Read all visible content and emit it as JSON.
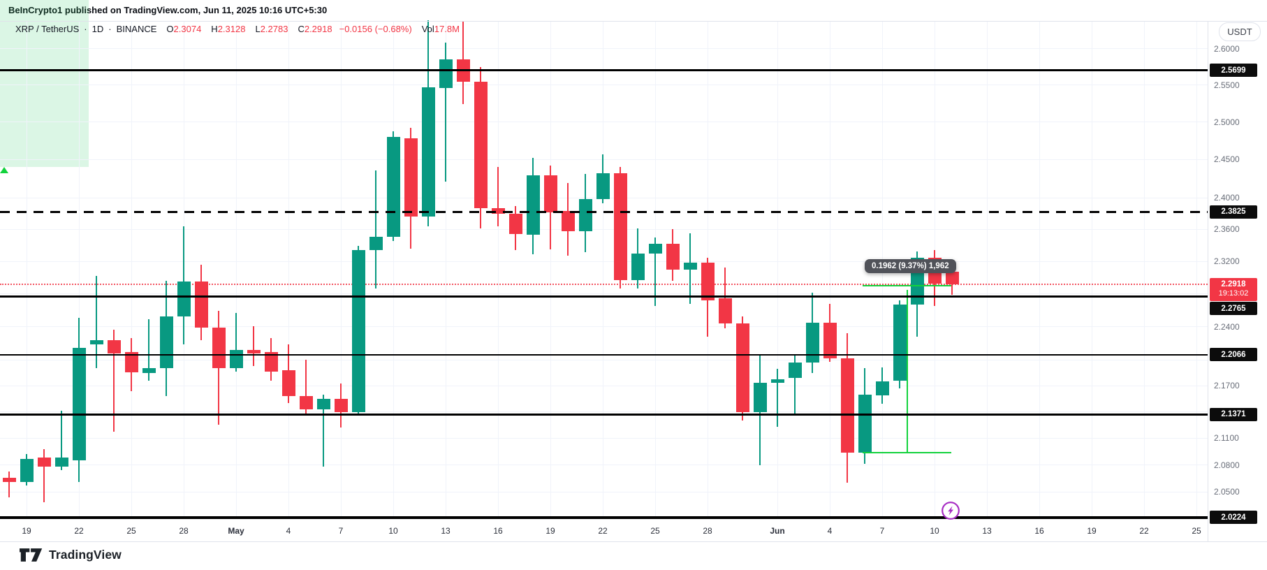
{
  "header": {
    "text": "BeInCrypto1 published on TradingView.com, Jun 11, 2025 10:16 UTC+5:30"
  },
  "legend": {
    "symbol": "XRP / TetherUS",
    "separator": "·",
    "interval": "1D",
    "exchange": "BINANCE",
    "o_label": "O",
    "o_value": "2.3074",
    "h_label": "H",
    "h_value": "2.3128",
    "l_label": "L",
    "l_value": "2.2783",
    "c_label": "C",
    "c_value": "2.2918",
    "change": "−0.0156 (−0.68%)",
    "vol_label": "Vol",
    "vol_value": "17.8M"
  },
  "currency_button": {
    "label": "USDT"
  },
  "footer": {
    "logo_text": "TradingView"
  },
  "measure_tooltip": {
    "text": "0.1962 (9.37%) 1,962"
  },
  "current_price": {
    "price_text": "2.2918",
    "countdown": "19:13:02",
    "price": 2.2918
  },
  "colors": {
    "up": "#089981",
    "down": "#f23645",
    "level": "#000000",
    "grid": "#f0f3fa",
    "current_line": "#f23645",
    "measure_fill": "rgba(34,197,94,0.16)",
    "measure_line": "#12d23c",
    "badge_bg": "#0c0c0c",
    "purple_marker": "#a62bc3"
  },
  "chart_data": {
    "type": "candlestick",
    "title": "XRP / TetherUS · 1D · BINANCE",
    "scale": "logarithmic",
    "ylim": [
      2.0,
      2.66
    ],
    "grid_on": true,
    "y_axis": {
      "labels": [
        {
          "text": "2.6000",
          "price": 2.6
        },
        {
          "text": "2.5500",
          "price": 2.55
        },
        {
          "text": "2.5000",
          "price": 2.5
        },
        {
          "text": "2.4500",
          "price": 2.45
        },
        {
          "text": "2.4000",
          "price": 2.4
        },
        {
          "text": "2.3600",
          "price": 2.36
        },
        {
          "text": "2.3200",
          "price": 2.32
        },
        {
          "text": "2.2400",
          "price": 2.24
        },
        {
          "text": "2.1700",
          "price": 2.17
        },
        {
          "text": "2.1100",
          "price": 2.11
        },
        {
          "text": "2.0800",
          "price": 2.08
        },
        {
          "text": "2.0500",
          "price": 2.05
        }
      ],
      "level_badges": [
        {
          "text": "2.5699",
          "price": 2.5699,
          "offset": 0
        },
        {
          "text": "2.3825",
          "price": 2.3825,
          "offset": 0
        },
        {
          "text": "2.2765",
          "price": 2.2765,
          "offset": 17
        },
        {
          "text": "2.2066",
          "price": 2.2066,
          "offset": 0
        },
        {
          "text": "2.1371",
          "price": 2.1371,
          "offset": 0
        },
        {
          "text": "2.0224",
          "price": 2.0224,
          "offset": 0
        }
      ]
    },
    "x_axis": {
      "ticks": [
        {
          "label": "19",
          "i": 1,
          "bold": false
        },
        {
          "label": "22",
          "i": 4,
          "bold": false
        },
        {
          "label": "25",
          "i": 7,
          "bold": false
        },
        {
          "label": "28",
          "i": 10,
          "bold": false
        },
        {
          "label": "May",
          "i": 13,
          "bold": true
        },
        {
          "label": "4",
          "i": 16,
          "bold": false
        },
        {
          "label": "7",
          "i": 19,
          "bold": false
        },
        {
          "label": "10",
          "i": 22,
          "bold": false
        },
        {
          "label": "13",
          "i": 25,
          "bold": false
        },
        {
          "label": "16",
          "i": 28,
          "bold": false
        },
        {
          "label": "19",
          "i": 31,
          "bold": false
        },
        {
          "label": "22",
          "i": 34,
          "bold": false
        },
        {
          "label": "25",
          "i": 37,
          "bold": false
        },
        {
          "label": "28",
          "i": 40,
          "bold": false
        },
        {
          "label": "Jun",
          "i": 44,
          "bold": true
        },
        {
          "label": "4",
          "i": 47,
          "bold": false
        },
        {
          "label": "7",
          "i": 50,
          "bold": false
        },
        {
          "label": "10",
          "i": 53,
          "bold": false
        },
        {
          "label": "13",
          "i": 56,
          "bold": false
        },
        {
          "label": "16",
          "i": 59,
          "bold": false
        },
        {
          "label": "19",
          "i": 62,
          "bold": false
        },
        {
          "label": "22",
          "i": 65,
          "bold": false
        },
        {
          "label": "25",
          "i": 68,
          "bold": false
        }
      ]
    },
    "grid_prices": [
      2.6,
      2.55,
      2.5,
      2.45,
      2.4,
      2.36,
      2.32,
      2.28,
      2.24,
      2.2,
      2.17,
      2.14,
      2.11,
      2.08,
      2.05
    ],
    "levels": [
      {
        "price": 2.5699,
        "style": "solid",
        "weight": 3
      },
      {
        "price": 2.3825,
        "style": "dashed",
        "weight": 3
      },
      {
        "price": 2.2765,
        "style": "solid",
        "weight": 3
      },
      {
        "price": 2.2066,
        "style": "solid",
        "weight": 1.5
      },
      {
        "price": 2.1371,
        "style": "solid",
        "weight": 3
      },
      {
        "price": 2.0224,
        "style": "solid",
        "weight": 4
      }
    ],
    "measure": {
      "label": "0.1962 (9.37%) 1,962",
      "from_price": 2.0937,
      "to_price": 2.2899,
      "from_index": 49,
      "to_index": 54,
      "from_date": "Jun 6",
      "to_date": "Jun 11"
    },
    "candles": [
      {
        "date": "Apr 18",
        "o": 2.066,
        "h": 2.073,
        "l": 2.044,
        "c": 2.061
      },
      {
        "date": "Apr 19",
        "o": 2.061,
        "h": 2.092,
        "l": 2.057,
        "c": 2.087
      },
      {
        "date": "Apr 20",
        "o": 2.088,
        "h": 2.098,
        "l": 2.039,
        "c": 2.078
      },
      {
        "date": "Apr 21",
        "o": 2.078,
        "h": 2.141,
        "l": 2.074,
        "c": 2.088
      },
      {
        "date": "Apr 22",
        "o": 2.085,
        "h": 2.251,
        "l": 2.061,
        "c": 2.215
      },
      {
        "date": "Apr 23",
        "o": 2.219,
        "h": 2.302,
        "l": 2.191,
        "c": 2.224
      },
      {
        "date": "Apr 24",
        "o": 2.224,
        "h": 2.236,
        "l": 2.117,
        "c": 2.208
      },
      {
        "date": "Apr 25",
        "o": 2.21,
        "h": 2.226,
        "l": 2.164,
        "c": 2.186
      },
      {
        "date": "Apr 26",
        "o": 2.185,
        "h": 2.249,
        "l": 2.176,
        "c": 2.191
      },
      {
        "date": "Apr 27",
        "o": 2.191,
        "h": 2.296,
        "l": 2.158,
        "c": 2.252
      },
      {
        "date": "Apr 28",
        "o": 2.252,
        "h": 2.364,
        "l": 2.219,
        "c": 2.295
      },
      {
        "date": "Apr 29",
        "o": 2.295,
        "h": 2.316,
        "l": 2.224,
        "c": 2.239
      },
      {
        "date": "Apr 30",
        "o": 2.239,
        "h": 2.259,
        "l": 2.125,
        "c": 2.191
      },
      {
        "date": "May 1",
        "o": 2.191,
        "h": 2.257,
        "l": 2.187,
        "c": 2.212
      },
      {
        "date": "May 2",
        "o": 2.212,
        "h": 2.241,
        "l": 2.193,
        "c": 2.208
      },
      {
        "date": "May 3",
        "o": 2.21,
        "h": 2.226,
        "l": 2.176,
        "c": 2.187
      },
      {
        "date": "May 4",
        "o": 2.188,
        "h": 2.219,
        "l": 2.15,
        "c": 2.158
      },
      {
        "date": "May 5",
        "o": 2.158,
        "h": 2.201,
        "l": 2.136,
        "c": 2.143
      },
      {
        "date": "May 6",
        "o": 2.143,
        "h": 2.16,
        "l": 2.078,
        "c": 2.155
      },
      {
        "date": "May 7",
        "o": 2.155,
        "h": 2.173,
        "l": 2.122,
        "c": 2.14
      },
      {
        "date": "May 8",
        "o": 2.14,
        "h": 2.339,
        "l": 2.136,
        "c": 2.334
      },
      {
        "date": "May 9",
        "o": 2.334,
        "h": 2.436,
        "l": 2.286,
        "c": 2.351
      },
      {
        "date": "May 10",
        "o": 2.351,
        "h": 2.487,
        "l": 2.345,
        "c": 2.48
      },
      {
        "date": "May 11",
        "o": 2.478,
        "h": 2.492,
        "l": 2.336,
        "c": 2.376
      },
      {
        "date": "May 12",
        "o": 2.376,
        "h": 2.64,
        "l": 2.364,
        "c": 2.547
      },
      {
        "date": "May 13",
        "o": 2.546,
        "h": 2.609,
        "l": 2.421,
        "c": 2.585
      },
      {
        "date": "May 14",
        "o": 2.585,
        "h": 2.638,
        "l": 2.524,
        "c": 2.554
      },
      {
        "date": "May 15",
        "o": 2.554,
        "h": 2.575,
        "l": 2.361,
        "c": 2.387
      },
      {
        "date": "May 16",
        "o": 2.387,
        "h": 2.44,
        "l": 2.364,
        "c": 2.38
      },
      {
        "date": "May 17",
        "o": 2.38,
        "h": 2.39,
        "l": 2.334,
        "c": 2.354
      },
      {
        "date": "May 18",
        "o": 2.353,
        "h": 2.452,
        "l": 2.329,
        "c": 2.429
      },
      {
        "date": "May 19",
        "o": 2.429,
        "h": 2.442,
        "l": 2.335,
        "c": 2.382
      },
      {
        "date": "May 20",
        "o": 2.383,
        "h": 2.419,
        "l": 2.327,
        "c": 2.358
      },
      {
        "date": "May 21",
        "o": 2.358,
        "h": 2.431,
        "l": 2.331,
        "c": 2.399
      },
      {
        "date": "May 22",
        "o": 2.399,
        "h": 2.457,
        "l": 2.393,
        "c": 2.432
      },
      {
        "date": "May 23",
        "o": 2.432,
        "h": 2.44,
        "l": 2.286,
        "c": 2.297
      },
      {
        "date": "May 24",
        "o": 2.297,
        "h": 2.361,
        "l": 2.286,
        "c": 2.33
      },
      {
        "date": "May 25",
        "o": 2.33,
        "h": 2.35,
        "l": 2.265,
        "c": 2.342
      },
      {
        "date": "May 26",
        "o": 2.342,
        "h": 2.36,
        "l": 2.296,
        "c": 2.31
      },
      {
        "date": "May 27",
        "o": 2.31,
        "h": 2.355,
        "l": 2.268,
        "c": 2.318
      },
      {
        "date": "May 28",
        "o": 2.318,
        "h": 2.324,
        "l": 2.228,
        "c": 2.272
      },
      {
        "date": "May 29",
        "o": 2.274,
        "h": 2.312,
        "l": 2.238,
        "c": 2.244
      },
      {
        "date": "May 30",
        "o": 2.244,
        "h": 2.252,
        "l": 2.13,
        "c": 2.14
      },
      {
        "date": "May 31",
        "o": 2.14,
        "h": 2.207,
        "l": 2.08,
        "c": 2.174
      },
      {
        "date": "Jun 1",
        "o": 2.174,
        "h": 2.19,
        "l": 2.123,
        "c": 2.178
      },
      {
        "date": "Jun 2",
        "o": 2.179,
        "h": 2.206,
        "l": 2.138,
        "c": 2.197
      },
      {
        "date": "Jun 3",
        "o": 2.197,
        "h": 2.281,
        "l": 2.185,
        "c": 2.245
      },
      {
        "date": "Jun 4",
        "o": 2.245,
        "h": 2.268,
        "l": 2.198,
        "c": 2.202
      },
      {
        "date": "Jun 5",
        "o": 2.202,
        "h": 2.232,
        "l": 2.06,
        "c": 2.094
      },
      {
        "date": "Jun 6",
        "o": 2.094,
        "h": 2.191,
        "l": 2.081,
        "c": 2.16
      },
      {
        "date": "Jun 7",
        "o": 2.159,
        "h": 2.192,
        "l": 2.149,
        "c": 2.175
      },
      {
        "date": "Jun 8",
        "o": 2.176,
        "h": 2.272,
        "l": 2.167,
        "c": 2.267
      },
      {
        "date": "Jun 9",
        "o": 2.267,
        "h": 2.332,
        "l": 2.228,
        "c": 2.324
      },
      {
        "date": "Jun 10",
        "o": 2.324,
        "h": 2.334,
        "l": 2.265,
        "c": 2.292
      },
      {
        "date": "Jun 11",
        "o": 2.3074,
        "h": 2.3128,
        "l": 2.2783,
        "c": 2.2918
      }
    ]
  }
}
